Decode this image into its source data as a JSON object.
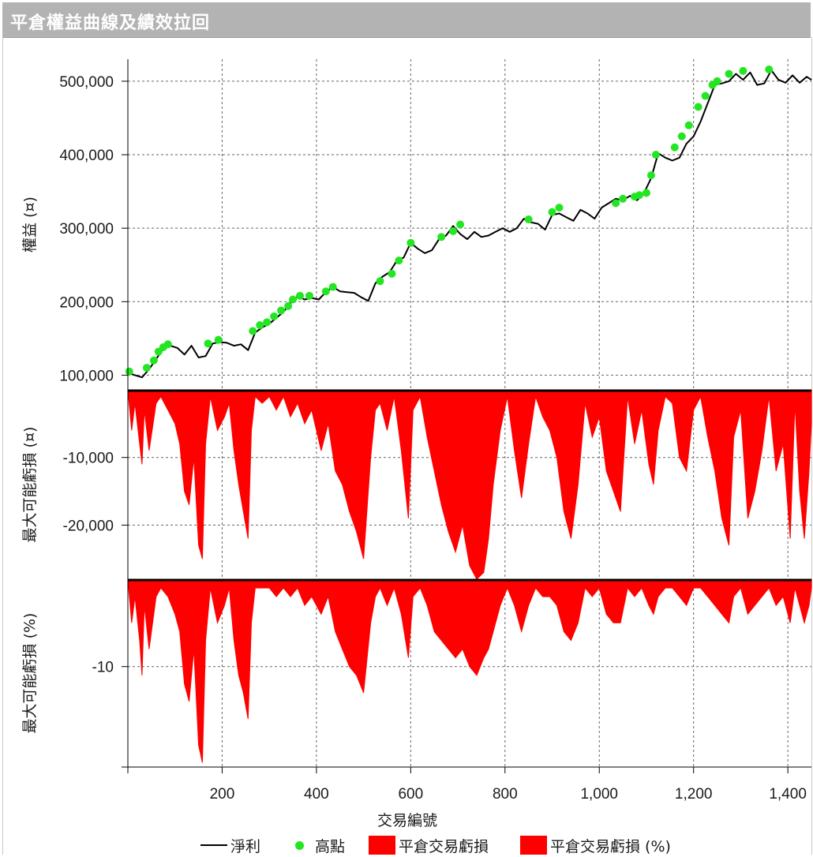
{
  "window_title": "平倉權益曲線及績效拉回",
  "colors": {
    "equity_line": "#000000",
    "highs": "#22e622",
    "drawdown_fill": "#ff0000",
    "grid": "#666666",
    "titlebar": "#b3b3b3"
  },
  "legend": {
    "net_profit": "淨利",
    "highs": "高點",
    "drawdown_abs": "平倉交易虧損",
    "drawdown_pct": "平倉交易虧損 (%)"
  },
  "chart_data": [
    {
      "type": "line",
      "title": "",
      "ylabel": "權益 (¤)",
      "xlabel": "交易編號",
      "xlim": [
        0,
        1450
      ],
      "ylim": [
        80000,
        530000
      ],
      "yticks": [
        100000,
        200000,
        300000,
        400000,
        500000
      ],
      "ytick_labels": [
        "100,000",
        "200,000",
        "300,000",
        "400,000",
        "500,000"
      ],
      "grid": true,
      "series": [
        {
          "name": "淨利",
          "x": [
            0,
            15,
            30,
            45,
            60,
            75,
            90,
            105,
            120,
            135,
            150,
            165,
            180,
            195,
            210,
            225,
            240,
            255,
            270,
            285,
            300,
            315,
            330,
            345,
            360,
            375,
            390,
            405,
            420,
            435,
            450,
            465,
            480,
            495,
            510,
            525,
            540,
            555,
            570,
            585,
            600,
            615,
            630,
            645,
            660,
            675,
            690,
            705,
            720,
            735,
            750,
            765,
            780,
            795,
            810,
            825,
            840,
            855,
            870,
            885,
            900,
            915,
            930,
            945,
            960,
            975,
            990,
            1005,
            1020,
            1035,
            1050,
            1065,
            1080,
            1095,
            1110,
            1125,
            1140,
            1155,
            1170,
            1185,
            1200,
            1215,
            1230,
            1245,
            1260,
            1275,
            1290,
            1305,
            1320,
            1335,
            1350,
            1365,
            1380,
            1395,
            1410,
            1425,
            1440,
            1450
          ],
          "values": [
            103000,
            100000,
            97000,
            108000,
            122000,
            136000,
            140000,
            137000,
            128000,
            140000,
            124000,
            126000,
            143000,
            145000,
            144000,
            140000,
            142000,
            134000,
            158000,
            165000,
            170000,
            178000,
            186000,
            198000,
            207000,
            203000,
            205000,
            203000,
            213000,
            220000,
            214000,
            213000,
            212000,
            206000,
            201000,
            225000,
            234000,
            240000,
            255000,
            260000,
            280000,
            272000,
            266000,
            270000,
            285000,
            290000,
            303000,
            292000,
            285000,
            295000,
            288000,
            290000,
            295000,
            300000,
            295000,
            300000,
            313000,
            308000,
            306000,
            298000,
            318000,
            320000,
            315000,
            310000,
            325000,
            320000,
            313000,
            328000,
            334000,
            340000,
            338000,
            344000,
            338000,
            348000,
            368000,
            402000,
            396000,
            392000,
            396000,
            415000,
            425000,
            445000,
            470000,
            495000,
            497000,
            500000,
            510000,
            502000,
            512000,
            495000,
            497000,
            515000,
            502000,
            498000,
            508000,
            498000,
            506000,
            502000
          ]
        },
        {
          "name": "高點",
          "x": [
            3,
            40,
            55,
            65,
            75,
            85,
            170,
            192,
            265,
            280,
            295,
            310,
            325,
            340,
            350,
            365,
            385,
            420,
            435,
            535,
            560,
            575,
            600,
            665,
            690,
            705,
            850,
            900,
            915,
            1035,
            1050,
            1075,
            1085,
            1100,
            1110,
            1120,
            1160,
            1175,
            1190,
            1210,
            1225,
            1240,
            1250,
            1275,
            1305,
            1360
          ],
          "values": [
            105000,
            110000,
            120000,
            132000,
            138000,
            142000,
            143000,
            148000,
            160000,
            168000,
            172000,
            180000,
            188000,
            194000,
            203000,
            208000,
            208000,
            214000,
            220000,
            228000,
            238000,
            256000,
            280000,
            288000,
            296000,
            305000,
            312000,
            322000,
            328000,
            334000,
            340000,
            343000,
            345000,
            348000,
            372000,
            400000,
            410000,
            425000,
            440000,
            465000,
            480000,
            495000,
            500000,
            510000,
            514000,
            516000
          ]
        }
      ]
    },
    {
      "type": "area",
      "title": "",
      "ylabel": "最大可能虧損 (¤)",
      "xlim": [
        0,
        1450
      ],
      "ylim": [
        -28000,
        0
      ],
      "yticks": [
        -10000,
        -20000
      ],
      "ytick_labels": [
        "-10,000",
        "-20,000"
      ],
      "grid": true,
      "series": [
        {
          "name": "平倉交易虧損",
          "x": [
            0,
            8,
            15,
            25,
            30,
            35,
            45,
            60,
            70,
            85,
            100,
            110,
            120,
            130,
            140,
            150,
            158,
            165,
            175,
            190,
            205,
            215,
            225,
            235,
            245,
            255,
            262,
            270,
            285,
            300,
            315,
            330,
            345,
            360,
            375,
            390,
            410,
            425,
            440,
            455,
            470,
            485,
            500,
            515,
            525,
            535,
            550,
            565,
            580,
            595,
            605,
            620,
            635,
            650,
            665,
            680,
            695,
            710,
            725,
            740,
            755,
            765,
            775,
            790,
            805,
            820,
            835,
            850,
            865,
            880,
            895,
            910,
            925,
            940,
            955,
            970,
            985,
            1000,
            1015,
            1030,
            1045,
            1060,
            1075,
            1090,
            1105,
            1115,
            1125,
            1140,
            1155,
            1170,
            1185,
            1200,
            1215,
            1230,
            1245,
            1260,
            1275,
            1285,
            1300,
            1315,
            1330,
            1345,
            1360,
            1375,
            1390,
            1405,
            1415,
            1425,
            1435,
            1445,
            1450
          ],
          "values": [
            0,
            -6000,
            -2000,
            -8000,
            -11000,
            -3000,
            -9000,
            -2000,
            -1000,
            -3000,
            -5000,
            -8000,
            -15000,
            -17000,
            -10000,
            -23000,
            -25000,
            -8000,
            -1000,
            -6000,
            -4000,
            -2000,
            -9000,
            -14000,
            -18000,
            -22000,
            -6000,
            -1000,
            -2000,
            -1000,
            -3000,
            -1000,
            -4000,
            -2000,
            -5000,
            -3000,
            -9000,
            -5000,
            -12000,
            -14000,
            -18000,
            -21000,
            -25000,
            -10000,
            -3000,
            -2000,
            -6000,
            -1000,
            -9000,
            -19000,
            -3000,
            -1000,
            -7000,
            -12000,
            -17000,
            -21000,
            -24000,
            -20000,
            -26000,
            -28000,
            -27000,
            -22000,
            -14000,
            -6000,
            -1000,
            -9000,
            -16000,
            -8000,
            -1000,
            -4000,
            -6000,
            -10000,
            -18000,
            -22000,
            -14000,
            -2000,
            -7000,
            -4000,
            -12000,
            -15000,
            -18000,
            -1000,
            -8000,
            -3000,
            -11000,
            -14000,
            -6000,
            -1000,
            -2000,
            -10000,
            -12000,
            -3000,
            -1000,
            -7000,
            -12000,
            -19000,
            -23000,
            -7000,
            -3000,
            -19000,
            -15000,
            -9000,
            -1000,
            -12000,
            -8000,
            -22000,
            -2000,
            -15000,
            -22000,
            -12000,
            -5000
          ]
        }
      ]
    },
    {
      "type": "area",
      "title": "",
      "ylabel": "最大可能虧損 (%)",
      "xlabel": "交易編號",
      "xlim": [
        0,
        1450
      ],
      "ylim": [
        -21.5,
        0
      ],
      "yticks": [
        -10
      ],
      "ytick_labels": [
        "-10"
      ],
      "xticks": [
        200,
        400,
        600,
        800,
        1000,
        1200,
        1400
      ],
      "xtick_labels": [
        "200",
        "400",
        "600",
        "800",
        "1,000",
        "1,200",
        "1,400"
      ],
      "grid": true,
      "series": [
        {
          "name": "平倉交易虧損 (%)",
          "x": [
            0,
            8,
            15,
            25,
            30,
            35,
            45,
            60,
            70,
            85,
            100,
            110,
            120,
            130,
            140,
            150,
            158,
            165,
            175,
            190,
            205,
            215,
            225,
            235,
            245,
            255,
            262,
            270,
            285,
            300,
            315,
            330,
            345,
            360,
            375,
            390,
            410,
            425,
            440,
            455,
            470,
            485,
            500,
            515,
            525,
            535,
            550,
            565,
            580,
            595,
            605,
            620,
            635,
            650,
            665,
            680,
            695,
            710,
            725,
            740,
            755,
            765,
            775,
            790,
            805,
            820,
            835,
            850,
            865,
            880,
            895,
            910,
            925,
            940,
            955,
            970,
            985,
            1000,
            1015,
            1030,
            1045,
            1060,
            1075,
            1090,
            1105,
            1115,
            1125,
            1140,
            1155,
            1170,
            1185,
            1200,
            1215,
            1230,
            1245,
            1260,
            1275,
            1285,
            1300,
            1315,
            1330,
            1345,
            1360,
            1375,
            1390,
            1405,
            1415,
            1425,
            1435,
            1445,
            1450
          ],
          "values": [
            0,
            -5,
            -2,
            -7,
            -11,
            -3,
            -8,
            -2,
            -1,
            -2,
            -4,
            -6,
            -12,
            -14,
            -8,
            -19,
            -21,
            -7,
            -1,
            -5,
            -3,
            -1,
            -7,
            -11,
            -13,
            -16,
            -5,
            -1,
            -1,
            -1,
            -2,
            -1,
            -2,
            -1,
            -3,
            -2,
            -4,
            -2,
            -6,
            -8,
            -10,
            -11,
            -13,
            -5,
            -2,
            -1,
            -3,
            -1,
            -4,
            -9,
            -2,
            -1,
            -3,
            -6,
            -7,
            -8,
            -9,
            -8,
            -10,
            -11,
            -9,
            -8,
            -6,
            -3,
            -1,
            -3,
            -6,
            -3,
            -1,
            -2,
            -2,
            -3,
            -6,
            -7,
            -5,
            -1,
            -2,
            -1,
            -4,
            -5,
            -5,
            -1,
            -2,
            -1,
            -3,
            -4,
            -2,
            -1,
            -1,
            -2,
            -3,
            -1,
            -1,
            -2,
            -3,
            -4,
            -5,
            -2,
            -1,
            -4,
            -3,
            -2,
            -1,
            -3,
            -2,
            -5,
            -1,
            -3,
            -5,
            -3,
            -1
          ]
        }
      ]
    }
  ]
}
